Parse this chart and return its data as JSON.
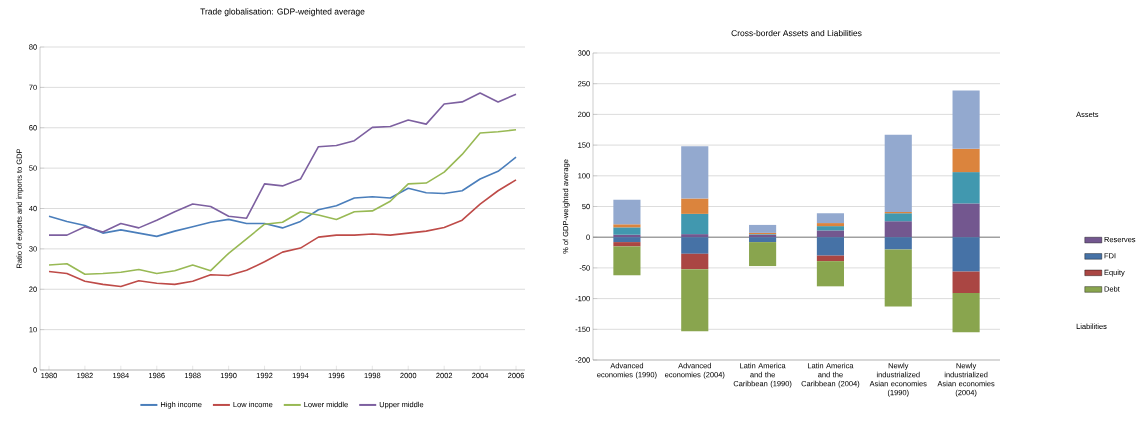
{
  "chart_data": [
    {
      "type": "line",
      "title": "Trade globalisation: GDP-weighted average",
      "ylabel": "Ratio of exports and imports to GDP",
      "x": [
        1980,
        1981,
        1982,
        1983,
        1984,
        1985,
        1986,
        1987,
        1988,
        1989,
        1990,
        1991,
        1992,
        1993,
        1994,
        1995,
        1996,
        1997,
        1998,
        1999,
        2000,
        2001,
        2002,
        2003,
        2004,
        2005,
        2006
      ],
      "xlim": [
        1979.5,
        2006.5
      ],
      "xticks": [
        1980,
        1982,
        1984,
        1986,
        1988,
        1990,
        1992,
        1994,
        1996,
        1998,
        2000,
        2002,
        2004,
        2006
      ],
      "ylim": [
        0,
        80
      ],
      "yticks": [
        0,
        10,
        20,
        30,
        40,
        50,
        60,
        70,
        80
      ],
      "grid": "y",
      "legend": "bottom",
      "series": [
        {
          "name": "High income",
          "color": "#4a7ebb",
          "values": [
            38.1,
            36.8,
            35.8,
            33.9,
            34.7,
            33.9,
            33.1,
            34.4,
            35.5,
            36.6,
            37.3,
            36.3,
            36.3,
            35.2,
            36.8,
            39.7,
            40.7,
            42.6,
            42.9,
            42.6,
            45.0,
            43.9,
            43.7,
            44.4,
            47.3,
            49.2,
            52.7
          ]
        },
        {
          "name": "Low income",
          "color": "#be4b48",
          "values": [
            24.4,
            23.9,
            22.0,
            21.2,
            20.7,
            22.1,
            21.5,
            21.2,
            22.0,
            23.6,
            23.4,
            24.7,
            26.8,
            29.2,
            30.2,
            32.9,
            33.4,
            33.4,
            33.7,
            33.4,
            33.9,
            34.4,
            35.3,
            37.1,
            41.1,
            44.4,
            47.1
          ]
        },
        {
          "name": "Lower middle",
          "color": "#98b954",
          "values": [
            26.0,
            26.3,
            23.7,
            23.9,
            24.2,
            24.9,
            23.9,
            24.6,
            26.0,
            24.6,
            28.9,
            32.5,
            36.1,
            36.6,
            39.2,
            38.4,
            37.3,
            39.2,
            39.4,
            41.8,
            46.1,
            46.3,
            49.0,
            53.4,
            58.7,
            59.0,
            59.5
          ]
        },
        {
          "name": "Upper middle",
          "color": "#7d60a0",
          "values": [
            33.4,
            33.4,
            35.5,
            34.2,
            36.3,
            35.2,
            37.1,
            39.2,
            41.1,
            40.5,
            38.1,
            37.6,
            46.1,
            45.6,
            47.3,
            55.3,
            55.6,
            56.8,
            60.1,
            60.3,
            61.9,
            60.9,
            65.9,
            66.4,
            68.6,
            66.4,
            68.3
          ]
        }
      ]
    },
    {
      "type": "bar",
      "title": "Cross-border Assets and Liabilities",
      "ylabel": "% of GDP-weighted average",
      "categories": [
        "Advanced economies (1990)",
        "Advanced economies (2004)",
        "Latin America and the Caribbean (1990)",
        "Latin America and the Caribbean (2004)",
        "Newly industrialized Asian economies (1990)",
        "Newly industrialized Asian economies (2004)"
      ],
      "ylim": [
        -200,
        300
      ],
      "yticks": [
        -200,
        -150,
        -100,
        -50,
        0,
        50,
        100,
        150,
        200,
        250,
        300
      ],
      "grid": "y",
      "stacked": true,
      "legend": "right",
      "annotations": [
        "Assets",
        "Liabilities"
      ],
      "series": [
        {
          "name": "Reserves",
          "color": "#73578f",
          "values": [
            4,
            5,
            4,
            11,
            26,
            55
          ]
        },
        {
          "name": "FDI",
          "color": "#4672a6",
          "values": [
            -8,
            -27,
            -8,
            -30,
            -20,
            -56
          ]
        },
        {
          "color": "#4198af",
          "values": [
            12,
            33,
            1,
            7,
            13,
            51
          ]
        },
        {
          "name": "Equity",
          "color": "#aa4643",
          "values": [
            -7,
            -25,
            null,
            -9,
            null,
            -35
          ]
        },
        {
          "color": "#db843d",
          "values": [
            5,
            25,
            2,
            5,
            2,
            38
          ]
        },
        {
          "name": "Debt",
          "color": "#89a54e",
          "values": [
            -47,
            -101,
            -39,
            -41,
            -93,
            -64
          ]
        },
        {
          "color": "#93a9cf",
          "values": [
            40,
            85,
            13,
            16,
            126,
            95
          ]
        }
      ]
    }
  ]
}
